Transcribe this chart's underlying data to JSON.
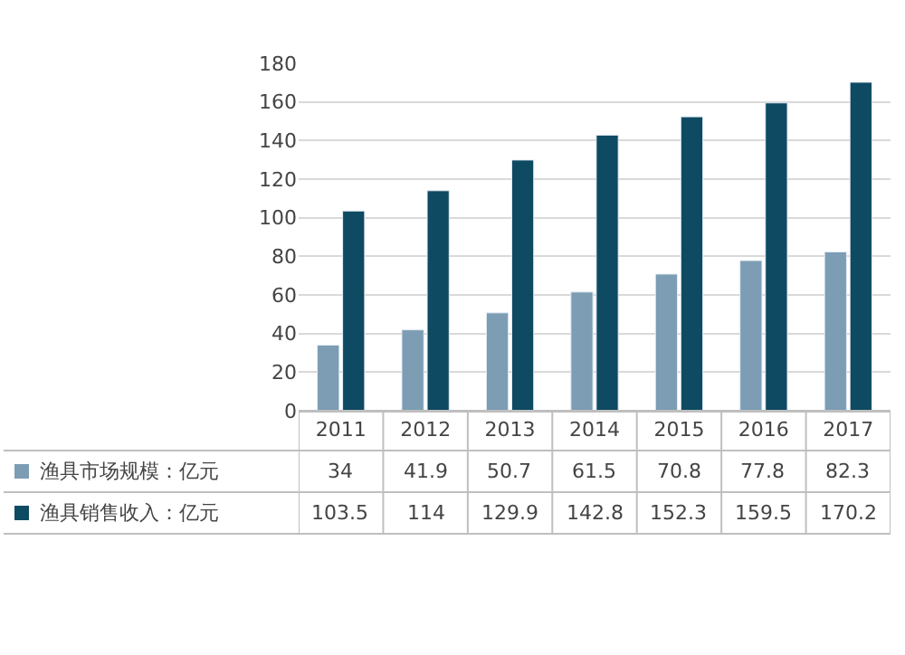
{
  "chart_data": {
    "type": "bar",
    "categories": [
      "2011",
      "2012",
      "2013",
      "2014",
      "2015",
      "2016",
      "2017"
    ],
    "series": [
      {
        "name": "渔具市场规模：亿元",
        "color": "#7c9db3",
        "values": [
          34,
          41.9,
          50.7,
          61.5,
          70.8,
          77.8,
          82.3
        ]
      },
      {
        "name": "渔具销售收入：亿元",
        "color": "#0e4a62",
        "values": [
          103.5,
          114,
          129.9,
          142.8,
          152.3,
          159.5,
          170.2
        ]
      }
    ],
    "ylim": [
      0,
      180
    ],
    "yticks": [
      0,
      20,
      40,
      60,
      80,
      100,
      120,
      140,
      160,
      180
    ],
    "grid": "y",
    "legend": "bottom",
    "data_labels": true
  }
}
